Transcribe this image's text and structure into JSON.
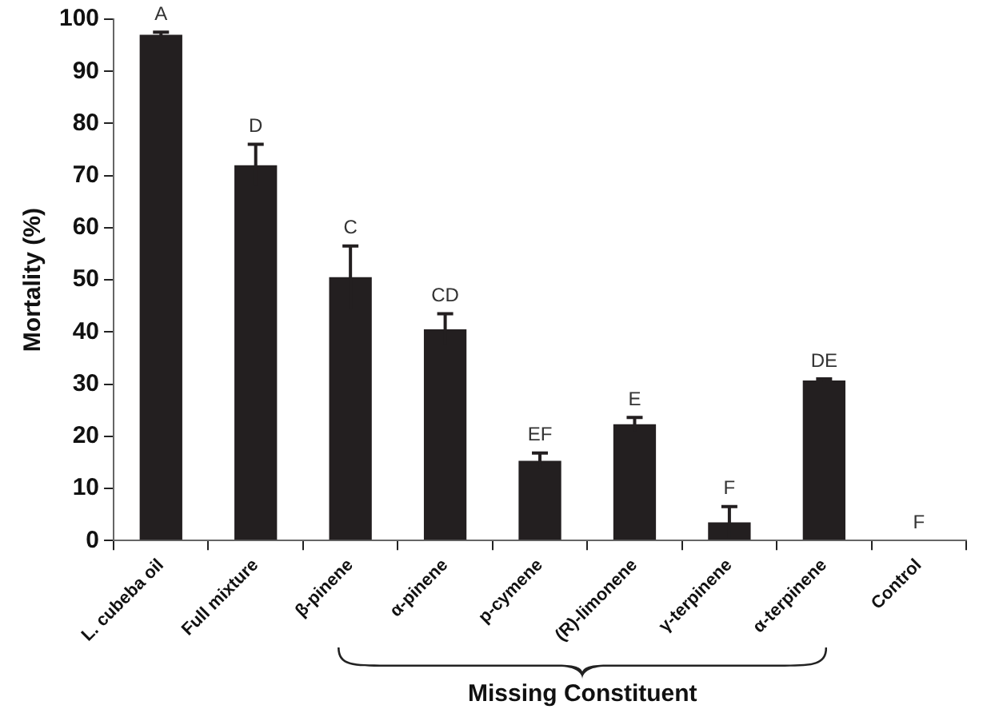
{
  "chart_data": {
    "type": "bar",
    "ylabel": "Mortality (%)",
    "categories": [
      "L. cubeba oil",
      "Full mixture",
      "β-pinene",
      "α-pinene",
      "p-cymene",
      "(R)-limonene",
      "γ-terpinene",
      "α-terpinene",
      "Control"
    ],
    "values": [
      97,
      72,
      50.5,
      40.5,
      15.3,
      22.3,
      3.5,
      30.7,
      0
    ],
    "errors": [
      0.5,
      4,
      6,
      3,
      1.5,
      1.3,
      3,
      0.3,
      null
    ],
    "value_labels": [
      "A",
      "D",
      "C",
      "CD",
      "EF",
      "E",
      "F",
      "DE",
      "F"
    ],
    "color": "#231f20",
    "ylim": [
      0,
      100
    ],
    "yticks": [
      0,
      10,
      20,
      30,
      40,
      50,
      60,
      70,
      80,
      90,
      100
    ],
    "annotations": [
      "Missing Constituent"
    ],
    "grid": false,
    "legend": false
  }
}
